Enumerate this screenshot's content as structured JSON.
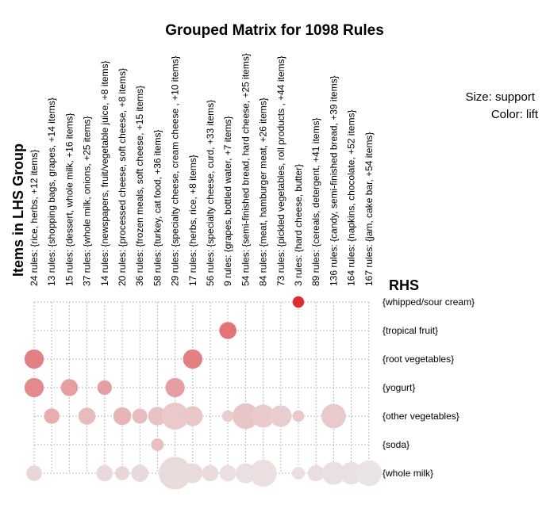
{
  "chart_data": {
    "type": "grouped-matrix",
    "title": "Grouped Matrix for 1098 Rules",
    "ylabel": "Items in LHS Group",
    "xlabel": "RHS",
    "legend": {
      "size": "Size: support",
      "color": "Color: lift",
      "position": "top-right"
    },
    "lhs_groups": [
      "24 rules: {rice, herbs, +12 items}",
      "13 rules: {shopping bags, grapes, +14 items}",
      "15 rules: {dessert, whole milk, +16 items}",
      "37 rules: {whole milk, onions, +25 items}",
      "14 rules: {newspapers, fruit/vegetable juice, +8 items}",
      "20 rules: {processed cheese, soft cheese, +8 items}",
      "36 rules: {frozen meals, soft cheese, +15 items}",
      "58 rules: {turkey, cat food, +36 items}",
      "29 rules: {specialty cheese, cream cheese , +10 items}",
      "17 rules: {herbs, rice, +8 items}",
      "56 rules: {specialty cheese, curd, +33 items}",
      "9 rules: {grapes, bottled water, +7 items}",
      "54 rules: {semi-finished bread, hard cheese, +25 items}",
      "84 rules: {meat, hamburger meat, +26 items}",
      "73 rules: {pickled vegetables, roll products , +44 items}",
      "3 rules: {hard cheese, butter}",
      "89 rules: {cereals, detergent, +41 items}",
      "136 rules: {candy, semi-finished bread, +39 items}",
      "164 rules: {napkins, chocolate, +52 items}",
      "167 rules: {jam, cake bar, +54 items}"
    ],
    "rhs_items": [
      "{whipped/sour cream}",
      "{tropical fruit}",
      "{root vegetables}",
      "{yogurt}",
      "{other vegetables}",
      "{soda}",
      "{whole milk}"
    ],
    "cells": [
      {
        "col": 15,
        "row": 0,
        "support": 0.1,
        "lift": 1.0
      },
      {
        "col": 11,
        "row": 1,
        "support": 0.22,
        "lift": 0.62
      },
      {
        "col": 0,
        "row": 2,
        "support": 0.28,
        "lift": 0.55
      },
      {
        "col": 9,
        "row": 2,
        "support": 0.28,
        "lift": 0.55
      },
      {
        "col": 0,
        "row": 3,
        "support": 0.28,
        "lift": 0.5
      },
      {
        "col": 2,
        "row": 3,
        "support": 0.22,
        "lift": 0.38
      },
      {
        "col": 4,
        "row": 3,
        "support": 0.16,
        "lift": 0.38
      },
      {
        "col": 8,
        "row": 3,
        "support": 0.28,
        "lift": 0.38
      },
      {
        "col": 1,
        "row": 4,
        "support": 0.18,
        "lift": 0.3
      },
      {
        "col": 3,
        "row": 4,
        "support": 0.22,
        "lift": 0.22
      },
      {
        "col": 5,
        "row": 4,
        "support": 0.24,
        "lift": 0.26
      },
      {
        "col": 6,
        "row": 4,
        "support": 0.17,
        "lift": 0.22
      },
      {
        "col": 7,
        "row": 4,
        "support": 0.26,
        "lift": 0.18
      },
      {
        "col": 8,
        "row": 4,
        "support": 0.55,
        "lift": 0.15
      },
      {
        "col": 9,
        "row": 4,
        "support": 0.3,
        "lift": 0.16
      },
      {
        "col": 11,
        "row": 4,
        "support": 0.1,
        "lift": 0.12
      },
      {
        "col": 12,
        "row": 4,
        "support": 0.5,
        "lift": 0.17
      },
      {
        "col": 13,
        "row": 4,
        "support": 0.4,
        "lift": 0.14
      },
      {
        "col": 14,
        "row": 4,
        "support": 0.35,
        "lift": 0.12
      },
      {
        "col": 15,
        "row": 4,
        "support": 0.1,
        "lift": 0.15
      },
      {
        "col": 17,
        "row": 4,
        "support": 0.45,
        "lift": 0.15
      },
      {
        "col": 7,
        "row": 5,
        "support": 0.12,
        "lift": 0.2
      },
      {
        "col": 0,
        "row": 6,
        "support": 0.18,
        "lift": 0.08
      },
      {
        "col": 4,
        "row": 6,
        "support": 0.2,
        "lift": 0.06
      },
      {
        "col": 5,
        "row": 6,
        "support": 0.15,
        "lift": 0.08
      },
      {
        "col": 6,
        "row": 6,
        "support": 0.22,
        "lift": 0.06
      },
      {
        "col": 8,
        "row": 6,
        "support": 0.8,
        "lift": 0.05
      },
      {
        "col": 9,
        "row": 6,
        "support": 0.3,
        "lift": 0.05
      },
      {
        "col": 10,
        "row": 6,
        "support": 0.2,
        "lift": 0.05
      },
      {
        "col": 11,
        "row": 6,
        "support": 0.2,
        "lift": 0.03
      },
      {
        "col": 12,
        "row": 6,
        "support": 0.3,
        "lift": 0.02
      },
      {
        "col": 13,
        "row": 6,
        "support": 0.55,
        "lift": 0.03
      },
      {
        "col": 15,
        "row": 6,
        "support": 0.12,
        "lift": 0.02
      },
      {
        "col": 16,
        "row": 6,
        "support": 0.2,
        "lift": 0.04
      },
      {
        "col": 17,
        "row": 6,
        "support": 0.4,
        "lift": 0.02
      },
      {
        "col": 18,
        "row": 6,
        "support": 0.38,
        "lift": 0.02
      },
      {
        "col": 19,
        "row": 6,
        "support": 0.5,
        "lift": 0.0
      }
    ],
    "grid": true,
    "colors": {
      "low_lift": "#ebe4e4",
      "high_lift": "#dc2f35",
      "grid": "#bdbdbd"
    }
  }
}
